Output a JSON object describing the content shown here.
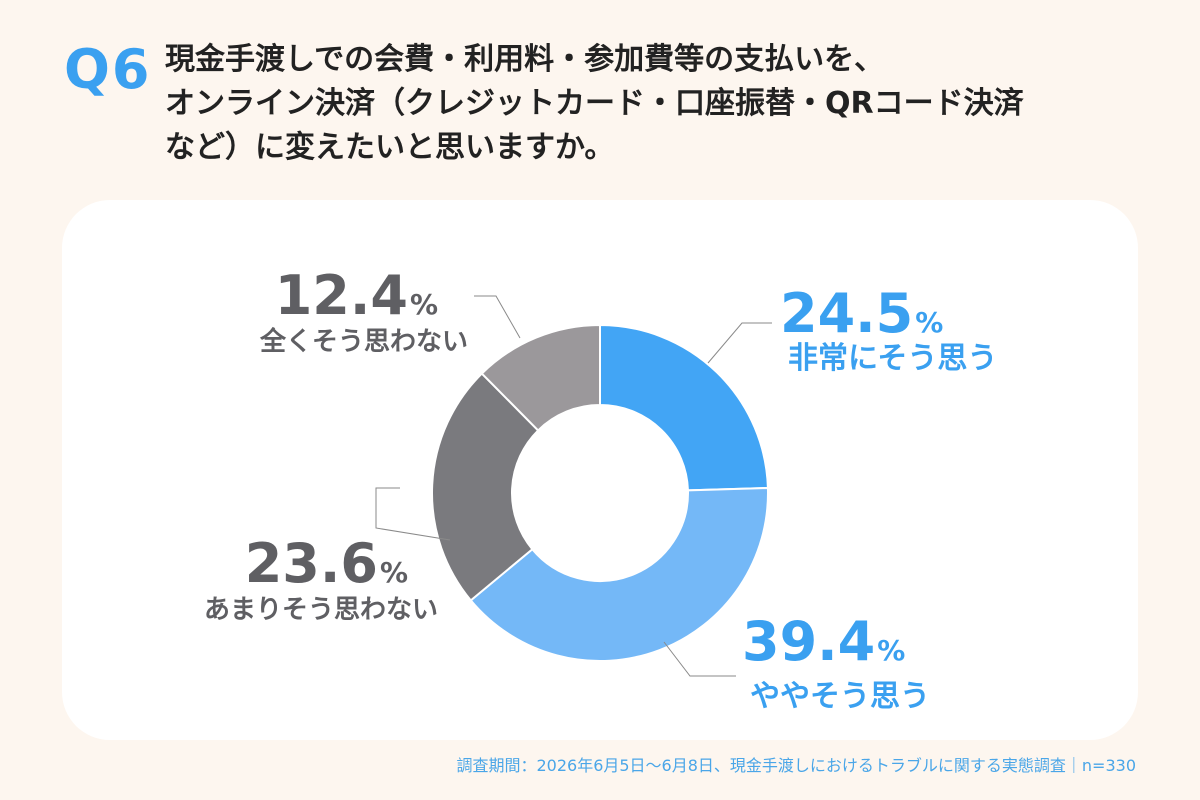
{
  "header": {
    "badge": "Q6",
    "question_lines": [
      "現金手渡しでの会費・利用料・参加費等の支払いを、",
      "オンライン決済（クレジットカード・口座振替・QRコード決済",
      "など）に変えたいと思いますか。"
    ]
  },
  "chart_data": {
    "type": "pie",
    "donut": true,
    "unit": "%",
    "slices": [
      {
        "label": "非常にそう思う",
        "value": 24.5,
        "color": "#42a5f5",
        "label_color": "#3aa0f0"
      },
      {
        "label": "ややそう思う",
        "value": 39.4,
        "color": "#74b8f7",
        "label_color": "#3aa0f0"
      },
      {
        "label": "あまりそう思わない",
        "value": 23.6,
        "color": "#7a7a7e",
        "label_color": "#5f5f63"
      },
      {
        "label": "全くそう思わない",
        "value": 12.4,
        "color": "#9b989b",
        "label_color": "#5f5f63"
      }
    ]
  },
  "footer": {
    "note": "調査期間：2026年6月5日～6月8日、現金手渡しにおけるトラブルに関する実態調査｜n=330"
  }
}
